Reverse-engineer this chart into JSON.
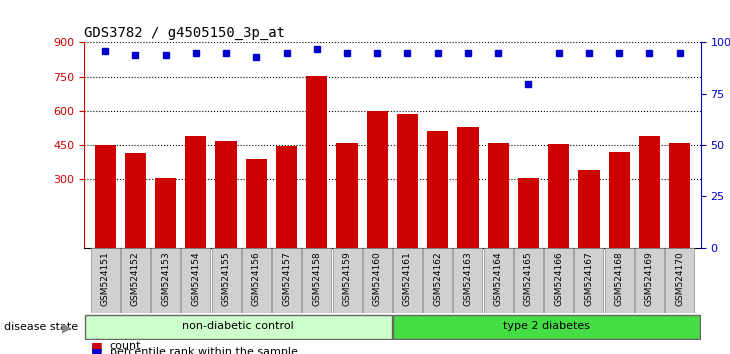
{
  "title": "GDS3782 / g4505150_3p_at",
  "samples": [
    "GSM524151",
    "GSM524152",
    "GSM524153",
    "GSM524154",
    "GSM524155",
    "GSM524156",
    "GSM524157",
    "GSM524158",
    "GSM524159",
    "GSM524160",
    "GSM524161",
    "GSM524162",
    "GSM524163",
    "GSM524164",
    "GSM524165",
    "GSM524166",
    "GSM524167",
    "GSM524168",
    "GSM524169",
    "GSM524170"
  ],
  "counts": [
    452,
    415,
    308,
    490,
    470,
    390,
    445,
    755,
    460,
    600,
    585,
    510,
    530,
    460,
    305,
    455,
    340,
    420,
    490,
    460
  ],
  "percentiles": [
    96,
    94,
    94,
    95,
    95,
    93,
    95,
    97,
    95,
    95,
    95,
    95,
    95,
    95,
    80,
    95,
    95,
    95,
    95,
    95
  ],
  "non_diabetic_count": 10,
  "type2_count": 10,
  "ylim_left": [
    0,
    900
  ],
  "yticks_left": [
    300,
    450,
    600,
    750,
    900
  ],
  "ylim_right": [
    0,
    100
  ],
  "yticks_right": [
    0,
    25,
    50,
    75,
    100
  ],
  "bar_color": "#cc0000",
  "dot_color": "#0000cc",
  "bg_color": "#ffffff",
  "tick_label_bg": "#d0d0d0",
  "non_diabetic_color": "#ccffcc",
  "type2_color": "#44dd44",
  "grid_color": "#000000",
  "title_color": "#333333",
  "right_axis_label_color": "#0000cc",
  "left_axis_label_color": "#cc0000"
}
